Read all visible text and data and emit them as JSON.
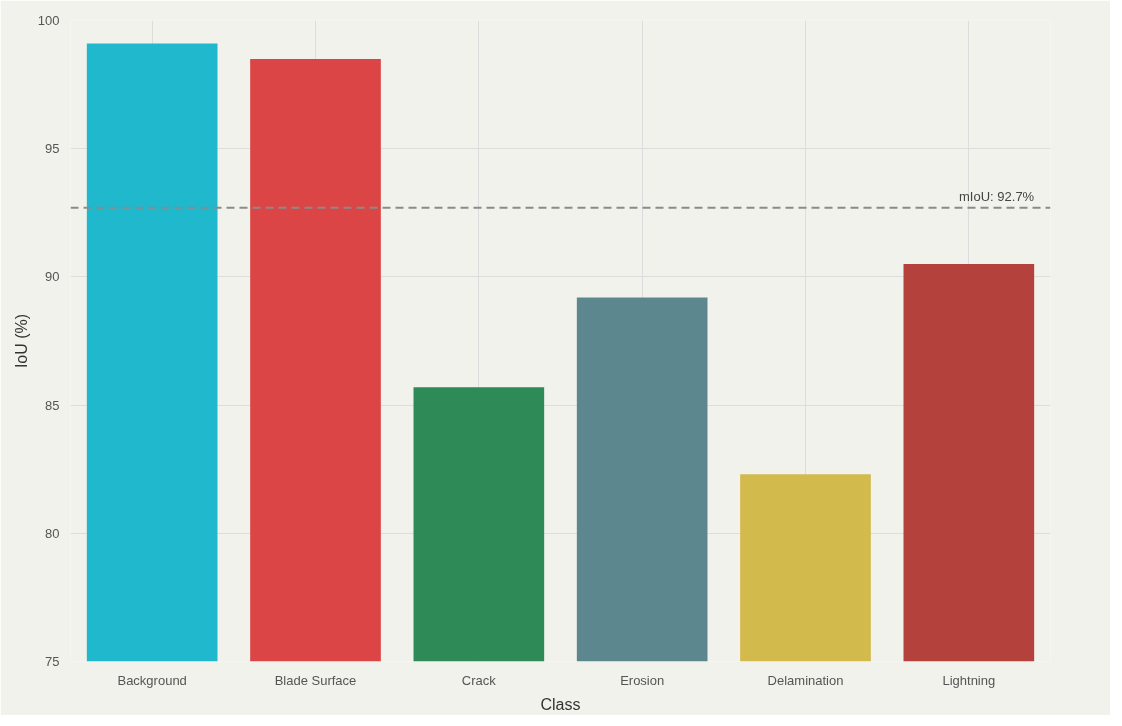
{
  "chart_data": {
    "type": "bar",
    "xlabel": "Class",
    "ylabel": "IoU (%)",
    "categories": [
      "Background",
      "Blade Surface",
      "Crack",
      "Erosion",
      "Delamination",
      "Lightning"
    ],
    "values": [
      99.1,
      98.5,
      85.7,
      89.2,
      82.3,
      90.5
    ],
    "colors": [
      "#1fb8cd",
      "#db4545",
      "#2e8b57",
      "#5d878f",
      "#d2ba4c",
      "#b4413c"
    ],
    "ylim": [
      75,
      100
    ],
    "yticks": [
      75,
      80,
      85,
      90,
      95,
      100
    ],
    "grid": true,
    "ref_lines": [
      {
        "axis": "y",
        "value": 92.7,
        "label": "mIoU: 92.7%",
        "color": "#8a8a8a",
        "line_style": "dashed"
      }
    ]
  }
}
